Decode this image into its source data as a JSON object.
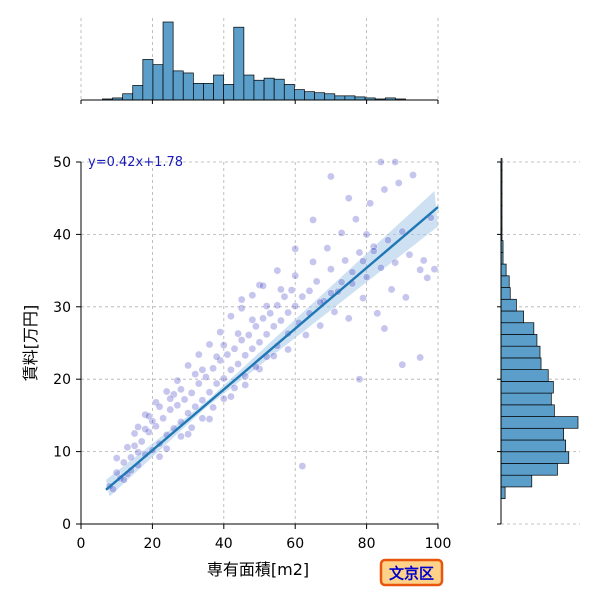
{
  "chart_data": {
    "type": "scatter",
    "xlabel": "専有面積[m2]",
    "ylabel": "賃料[万円]",
    "xlim": [
      0,
      100
    ],
    "ylim": [
      0,
      50
    ],
    "x_ticks": [
      0,
      20,
      40,
      60,
      80,
      100
    ],
    "y_ticks": [
      0,
      10,
      20,
      30,
      40,
      50
    ],
    "grid": true,
    "equation_label": "y=0.42x+1.78",
    "badge": "文京区",
    "regression": {
      "slope": 0.42,
      "intercept": 1.78,
      "x_range": [
        7,
        100
      ]
    },
    "colors": {
      "points": "#2f2fc0",
      "regression_line": "#1f77b4",
      "confidence_band": "#a6c8e8",
      "histogram_fill": "#5a9ec9",
      "equation_text": "#1a1ab8",
      "badge_fill": "#ffd28a",
      "badge_border": "#e8550b",
      "badge_text": "#0000cc"
    },
    "points": [
      [
        8,
        5.2
      ],
      [
        9,
        4.8
      ],
      [
        10,
        7.1
      ],
      [
        11,
        6.3
      ],
      [
        12,
        8.5
      ],
      [
        13,
        6.9
      ],
      [
        14,
        9.2
      ],
      [
        15,
        10.8
      ],
      [
        16,
        8.1
      ],
      [
        17,
        11.4
      ],
      [
        18,
        9.6
      ],
      [
        19,
        12.7
      ],
      [
        20,
        10.2
      ],
      [
        21,
        13.5
      ],
      [
        22,
        11.1
      ],
      [
        23,
        14.6
      ],
      [
        24,
        12.3
      ],
      [
        25,
        15.8
      ],
      [
        26,
        13.2
      ],
      [
        27,
        16.4
      ],
      [
        28,
        14.1
      ],
      [
        29,
        17.2
      ],
      [
        30,
        15.3
      ],
      [
        31,
        18.1
      ],
      [
        32,
        16.2
      ],
      [
        33,
        19.4
      ],
      [
        34,
        17.1
      ],
      [
        35,
        20.3
      ],
      [
        36,
        18.2
      ],
      [
        37,
        21.5
      ],
      [
        38,
        19.4
      ],
      [
        39,
        22.6
      ],
      [
        40,
        20.1
      ],
      [
        41,
        23.4
      ],
      [
        42,
        21.3
      ],
      [
        43,
        24.2
      ],
      [
        44,
        22.1
      ],
      [
        45,
        25.4
      ],
      [
        46,
        23.3
      ],
      [
        47,
        26.1
      ],
      [
        48,
        24.2
      ],
      [
        49,
        27.3
      ],
      [
        50,
        25.1
      ],
      [
        51,
        28.4
      ],
      [
        52,
        26.2
      ],
      [
        53,
        29.1
      ],
      [
        54,
        27.3
      ],
      [
        55,
        30.2
      ],
      [
        56,
        28.1
      ],
      [
        57,
        31.4
      ],
      [
        58,
        29.2
      ],
      [
        59,
        32.3
      ],
      [
        60,
        30.1
      ],
      [
        62,
        31.4
      ],
      [
        64,
        32.2
      ],
      [
        66,
        33.5
      ],
      [
        68,
        30.8
      ],
      [
        70,
        35.2
      ],
      [
        72,
        32.1
      ],
      [
        74,
        36.4
      ],
      [
        76,
        33.2
      ],
      [
        78,
        37.5
      ],
      [
        80,
        34.1
      ],
      [
        82,
        38.3
      ],
      [
        84,
        35.4
      ],
      [
        86,
        39.2
      ],
      [
        88,
        36.1
      ],
      [
        90,
        40.4
      ],
      [
        92,
        37.2
      ],
      [
        95,
        35.1
      ],
      [
        98,
        42.3
      ],
      [
        12,
        6.1
      ],
      [
        14,
        7.4
      ],
      [
        16,
        9.9
      ],
      [
        18,
        13.1
      ],
      [
        20,
        14.2
      ],
      [
        22,
        9.3
      ],
      [
        24,
        10.4
      ],
      [
        26,
        17.9
      ],
      [
        28,
        18.6
      ],
      [
        30,
        12.4
      ],
      [
        32,
        20.7
      ],
      [
        34,
        21.3
      ],
      [
        36,
        14.5
      ],
      [
        38,
        23.1
      ],
      [
        40,
        24.7
      ],
      [
        42,
        17.6
      ],
      [
        44,
        26.3
      ],
      [
        46,
        19.2
      ],
      [
        48,
        28.2
      ],
      [
        50,
        21.4
      ],
      [
        52,
        30.1
      ],
      [
        54,
        23.2
      ],
      [
        56,
        32.4
      ],
      [
        58,
        24.1
      ],
      [
        60,
        34.3
      ],
      [
        63,
        26.1
      ],
      [
        65,
        36.2
      ],
      [
        67,
        27.4
      ],
      [
        69,
        38.1
      ],
      [
        71,
        29.3
      ],
      [
        73,
        40.2
      ],
      [
        75,
        28.4
      ],
      [
        77,
        42.1
      ],
      [
        79,
        31.2
      ],
      [
        81,
        44.3
      ],
      [
        83,
        29.1
      ],
      [
        85,
        46.2
      ],
      [
        87,
        32.4
      ],
      [
        89,
        47.1
      ],
      [
        91,
        31.3
      ],
      [
        93,
        48.2
      ],
      [
        96,
        36.4
      ],
      [
        99,
        35.2
      ],
      [
        84,
        50
      ],
      [
        88,
        50
      ],
      [
        62,
        8
      ],
      [
        78,
        20
      ],
      [
        85,
        27
      ],
      [
        90,
        22
      ],
      [
        95,
        23
      ],
      [
        97,
        34
      ],
      [
        70,
        48
      ],
      [
        75,
        45
      ],
      [
        80,
        40
      ],
      [
        65,
        42
      ],
      [
        60,
        38
      ],
      [
        55,
        35
      ],
      [
        50,
        33
      ],
      [
        45,
        31
      ],
      [
        15,
        12.5
      ],
      [
        18,
        15.1
      ],
      [
        21,
        16.8
      ],
      [
        24,
        18.3
      ],
      [
        27,
        19.8
      ],
      [
        30,
        21.9
      ],
      [
        33,
        23.4
      ],
      [
        36,
        24.8
      ],
      [
        39,
        26.5
      ],
      [
        42,
        28.7
      ],
      [
        45,
        29.8
      ],
      [
        48,
        31.6
      ],
      [
        51,
        32.9
      ],
      [
        10,
        9.1
      ],
      [
        13,
        10.6
      ],
      [
        16,
        13.4
      ],
      [
        19,
        14.9
      ],
      [
        22,
        16.2
      ],
      [
        25,
        17.3
      ],
      [
        28,
        12.1
      ],
      [
        31,
        13.3
      ],
      [
        34,
        14.6
      ],
      [
        37,
        16.1
      ],
      [
        40,
        17.3
      ],
      [
        43,
        18.8
      ],
      [
        46,
        20.4
      ],
      [
        49,
        21.7
      ],
      [
        52,
        23.1
      ],
      [
        55,
        24.6
      ],
      [
        58,
        26.3
      ],
      [
        61,
        27.8
      ],
      [
        64,
        29.1
      ],
      [
        67,
        30.6
      ],
      [
        70,
        31.9
      ],
      [
        73,
        33.4
      ],
      [
        76,
        34.8
      ],
      [
        79,
        36.3
      ],
      [
        82,
        37.7
      ]
    ],
    "x_histogram": {
      "bin_edges_start": 6,
      "bin_width": 2.83,
      "counts": [
        1,
        2,
        6,
        14,
        39,
        34,
        75,
        28,
        26,
        16,
        16,
        24,
        15,
        70,
        24,
        19,
        21,
        20,
        15,
        10,
        8,
        7,
        6,
        4,
        4,
        3,
        2,
        1,
        2,
        1
      ]
    },
    "y_histogram": {
      "bin_edges_start": 3.5,
      "bin_width": 1.62,
      "counts": [
        4,
        30,
        55,
        66,
        63,
        61,
        75,
        52,
        49,
        51,
        46,
        39,
        38,
        35,
        32,
        22,
        15,
        9,
        8,
        5,
        2,
        2,
        1,
        1,
        1,
        1,
        1,
        1,
        1,
        0,
        0
      ]
    }
  }
}
